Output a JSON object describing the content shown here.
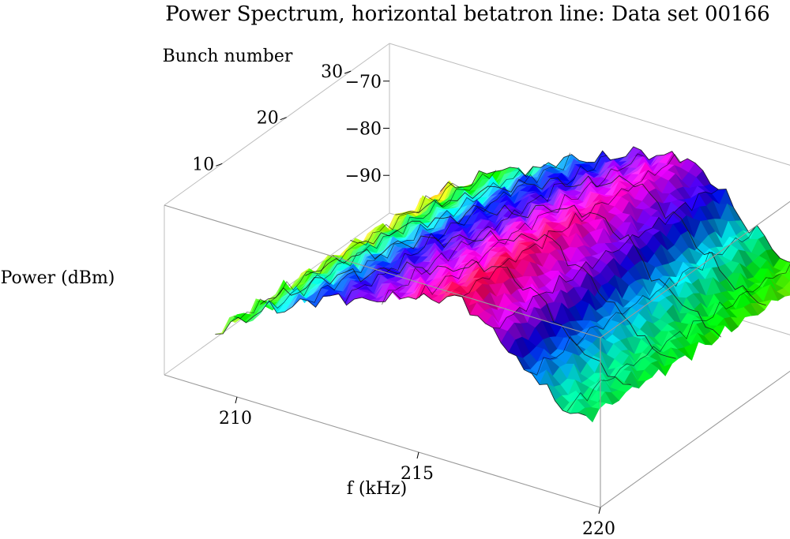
{
  "chart_data": {
    "type": "surface3d",
    "title": "Power Spectrum, horizontal betatron line: Data set 00166",
    "xlabel": "f (kHz)",
    "ylabel": "Bunch number",
    "zlabel": "Power (dBm)",
    "x_ticks": [
      "210",
      "215",
      "220"
    ],
    "y_ticks": [
      "10",
      "20",
      "30"
    ],
    "z_ticks": [
      "−70",
      "−80",
      "−90"
    ],
    "xlim": [
      208,
      220
    ],
    "ylim": [
      1,
      36
    ],
    "zlim": [
      -98,
      -62
    ],
    "coloring": "hue cycle by power level (orange/yellow low, green, cyan, blue, magenta, red high)",
    "surface": {
      "freq_khz": [
        208,
        209,
        210,
        211,
        212,
        213,
        214,
        215,
        216,
        217,
        218,
        219,
        220
      ],
      "bunch_rows": [
        1,
        8,
        15,
        22,
        29,
        36
      ],
      "power_dbm": [
        [
          -92,
          -88,
          -82,
          -77,
          -73,
          -70,
          -68,
          -65,
          -63,
          -67,
          -74,
          -79,
          -81
        ],
        [
          -93,
          -89,
          -83,
          -78,
          -74,
          -71,
          -68,
          -66,
          -63,
          -67,
          -74,
          -79,
          -82
        ],
        [
          -93,
          -89,
          -84,
          -79,
          -75,
          -71,
          -69,
          -66,
          -64,
          -68,
          -75,
          -80,
          -83
        ],
        [
          -94,
          -90,
          -85,
          -80,
          -76,
          -72,
          -70,
          -67,
          -65,
          -69,
          -76,
          -81,
          -84
        ],
        [
          -95,
          -91,
          -86,
          -81,
          -77,
          -73,
          -71,
          -68,
          -66,
          -70,
          -77,
          -82,
          -85
        ],
        [
          -96,
          -92,
          -87,
          -82,
          -79,
          -75,
          -72,
          -69,
          -67,
          -71,
          -78,
          -83,
          -86
        ]
      ]
    }
  }
}
